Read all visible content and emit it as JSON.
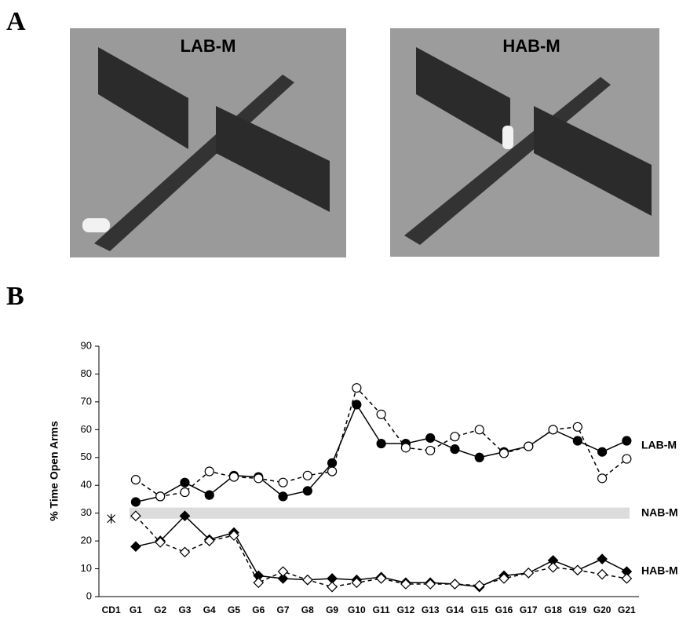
{
  "panels": [
    "A",
    "B"
  ],
  "photos": [
    "LAB-M",
    "HAB-M"
  ],
  "chart_data": {
    "type": "line",
    "y_label": "% Time Open Arms",
    "categories": [
      "CD1",
      "G1",
      "G2",
      "G3",
      "G4",
      "G5",
      "G6",
      "G7",
      "G8",
      "G9",
      "G10",
      "G11",
      "G12",
      "G13",
      "G14",
      "G15",
      "G16",
      "G17",
      "G18",
      "G19",
      "G20",
      "G21"
    ],
    "ylim": [
      0,
      90
    ],
    "yticks": [
      0,
      10,
      20,
      30,
      40,
      50,
      60,
      70,
      80,
      90
    ],
    "groups": [
      {
        "name": "LAB-M",
        "series": [
          {
            "marker": "circle",
            "filled": true,
            "dashed": false,
            "values": [
              null,
              34,
              36,
              41,
              36.5,
              43.5,
              43,
              36,
              38,
              48,
              69,
              55,
              55,
              57,
              53,
              50,
              52,
              54,
              60,
              56,
              52,
              56
            ]
          },
          {
            "marker": "circle",
            "filled": false,
            "dashed": true,
            "values": [
              null,
              42,
              36,
              37.5,
              45,
              43,
              42.5,
              41,
              43.5,
              45,
              75,
              65.5,
              53.5,
              52.5,
              57.5,
              60,
              51.5,
              54,
              60,
              61,
              42.5,
              49.5
            ]
          }
        ]
      },
      {
        "name": "NAB-M",
        "band": [
          28,
          32
        ],
        "series": [
          {
            "marker": "cross",
            "filled": false,
            "dashed": false,
            "values": [
              28,
              null,
              null,
              null,
              null,
              null,
              null,
              null,
              null,
              null,
              null,
              null,
              null,
              null,
              null,
              null,
              null,
              null,
              null,
              null,
              null,
              null
            ]
          }
        ]
      },
      {
        "name": "HAB-M",
        "series": [
          {
            "marker": "diamond",
            "filled": true,
            "dashed": false,
            "values": [
              null,
              18,
              20,
              29,
              20.5,
              23,
              7.5,
              6.5,
              6,
              6.5,
              6,
              7,
              5,
              5,
              4.5,
              3.5,
              7.5,
              8.5,
              13,
              9.5,
              13.5,
              9
            ]
          },
          {
            "marker": "diamond",
            "filled": false,
            "dashed": true,
            "values": [
              null,
              29,
              19.5,
              16,
              20,
              22,
              5,
              9,
              6,
              3.5,
              5,
              6.5,
              4.5,
              4.5,
              4.5,
              4,
              6.5,
              8.5,
              10.5,
              9.5,
              8,
              6.5
            ]
          }
        ]
      }
    ]
  }
}
